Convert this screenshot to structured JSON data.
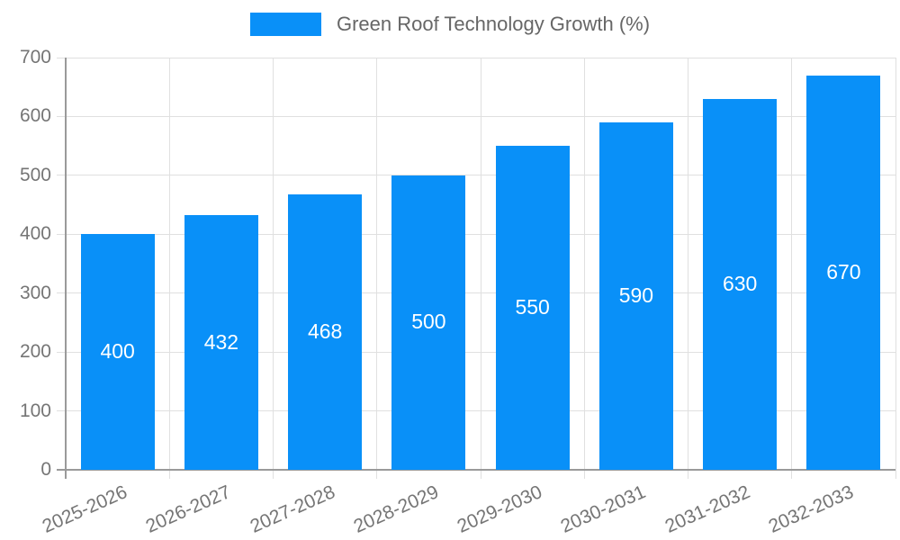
{
  "chart_data": {
    "type": "bar",
    "title": "Green Roof Technology Growth (%)",
    "categories": [
      "2025-2026",
      "2026-2027",
      "2027-2028",
      "2028-2029",
      "2029-2030",
      "2030-2031",
      "2031-2032",
      "2032-2033"
    ],
    "series": [
      {
        "name": "Green Roof Technology Growth (%)",
        "values": [
          400,
          432,
          468,
          500,
          550,
          590,
          630,
          670
        ]
      }
    ],
    "data_labels": [
      "400",
      "432",
      "468",
      "500",
      "550",
      "590",
      "630",
      "670"
    ],
    "xlabel": "",
    "ylabel": "",
    "ylim": [
      0,
      700
    ],
    "yticks": [
      0,
      100,
      200,
      300,
      400,
      500,
      600,
      700
    ],
    "grid": true,
    "legend_position": "top"
  },
  "colors": {
    "bar": "#0990f8",
    "grid": "#e0e0e0",
    "axis": "#9a9a9a",
    "tick_label": "#757575",
    "legend_text": "#666666",
    "bar_label_text": "#ffffff",
    "background": "#ffffff"
  }
}
